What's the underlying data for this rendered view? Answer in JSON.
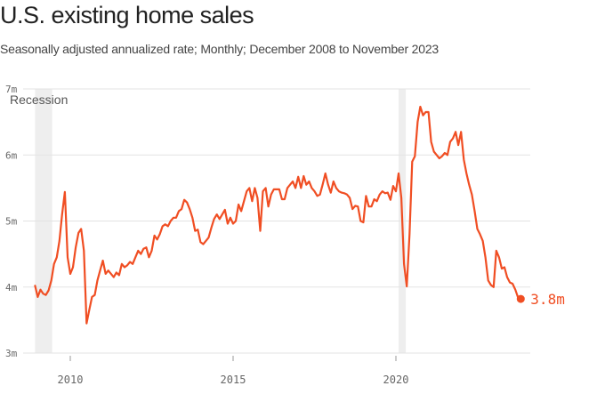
{
  "header": {
    "title": "U.S. existing home sales",
    "subtitle": "Seasonally adjusted annualized rate; Monthly; December 2008 to November 2023"
  },
  "colors": {
    "line": "#f04e23",
    "grid": "#e3e3e3",
    "recession": "#eeeeee"
  },
  "chart_data": {
    "type": "line",
    "title": "U.S. existing home sales",
    "subtitle": "Seasonally adjusted annualized rate; Monthly; December 2008 to November 2023",
    "ylim": [
      3,
      7
    ],
    "yticks": [
      3,
      4,
      5,
      6,
      7
    ],
    "ytick_labels": [
      "3m",
      "4m",
      "5m",
      "6m",
      "7m"
    ],
    "xticks": [
      2010,
      2015,
      2020
    ],
    "xtick_labels": [
      "2010",
      "2015",
      "2020"
    ],
    "recession_label": "Recession",
    "recessions": [
      {
        "start": "2008-12",
        "end": "2009-06"
      },
      {
        "start": "2020-02",
        "end": "2020-04"
      }
    ],
    "end_label": "3.8m",
    "series": [
      {
        "units": "millions",
        "points": [
          [
            "2008-12",
            4.02
          ],
          [
            "2009-01",
            3.85
          ],
          [
            "2009-02",
            3.96
          ],
          [
            "2009-03",
            3.9
          ],
          [
            "2009-04",
            3.88
          ],
          [
            "2009-05",
            3.95
          ],
          [
            "2009-06",
            4.1
          ],
          [
            "2009-07",
            4.35
          ],
          [
            "2009-08",
            4.45
          ],
          [
            "2009-09",
            4.7
          ],
          [
            "2009-10",
            5.1
          ],
          [
            "2009-11",
            5.44
          ],
          [
            "2009-12",
            4.45
          ],
          [
            "2010-01",
            4.2
          ],
          [
            "2010-02",
            4.3
          ],
          [
            "2010-03",
            4.6
          ],
          [
            "2010-04",
            4.82
          ],
          [
            "2010-05",
            4.88
          ],
          [
            "2010-06",
            4.55
          ],
          [
            "2010-07",
            3.45
          ],
          [
            "2010-08",
            3.65
          ],
          [
            "2010-09",
            3.85
          ],
          [
            "2010-10",
            3.88
          ],
          [
            "2010-11",
            4.1
          ],
          [
            "2010-12",
            4.25
          ],
          [
            "2011-01",
            4.4
          ],
          [
            "2011-02",
            4.2
          ],
          [
            "2011-03",
            4.25
          ],
          [
            "2011-04",
            4.2
          ],
          [
            "2011-05",
            4.15
          ],
          [
            "2011-06",
            4.22
          ],
          [
            "2011-07",
            4.18
          ],
          [
            "2011-08",
            4.35
          ],
          [
            "2011-09",
            4.3
          ],
          [
            "2011-10",
            4.33
          ],
          [
            "2011-11",
            4.38
          ],
          [
            "2011-12",
            4.35
          ],
          [
            "2012-01",
            4.45
          ],
          [
            "2012-02",
            4.55
          ],
          [
            "2012-03",
            4.5
          ],
          [
            "2012-04",
            4.58
          ],
          [
            "2012-05",
            4.6
          ],
          [
            "2012-06",
            4.45
          ],
          [
            "2012-07",
            4.55
          ],
          [
            "2012-08",
            4.78
          ],
          [
            "2012-09",
            4.72
          ],
          [
            "2012-10",
            4.8
          ],
          [
            "2012-11",
            4.92
          ],
          [
            "2012-12",
            4.95
          ],
          [
            "2013-01",
            4.92
          ],
          [
            "2013-02",
            5.0
          ],
          [
            "2013-03",
            5.05
          ],
          [
            "2013-04",
            5.05
          ],
          [
            "2013-05",
            5.15
          ],
          [
            "2013-06",
            5.18
          ],
          [
            "2013-07",
            5.32
          ],
          [
            "2013-08",
            5.28
          ],
          [
            "2013-09",
            5.18
          ],
          [
            "2013-10",
            5.05
          ],
          [
            "2013-11",
            4.85
          ],
          [
            "2013-12",
            4.87
          ],
          [
            "2014-01",
            4.68
          ],
          [
            "2014-02",
            4.65
          ],
          [
            "2014-03",
            4.7
          ],
          [
            "2014-04",
            4.75
          ],
          [
            "2014-05",
            4.9
          ],
          [
            "2014-06",
            5.03
          ],
          [
            "2014-07",
            5.1
          ],
          [
            "2014-08",
            5.03
          ],
          [
            "2014-09",
            5.1
          ],
          [
            "2014-10",
            5.17
          ],
          [
            "2014-11",
            4.96
          ],
          [
            "2014-12",
            5.05
          ],
          [
            "2015-01",
            4.96
          ],
          [
            "2015-02",
            5.0
          ],
          [
            "2015-03",
            5.25
          ],
          [
            "2015-04",
            5.15
          ],
          [
            "2015-05",
            5.3
          ],
          [
            "2015-06",
            5.45
          ],
          [
            "2015-07",
            5.5
          ],
          [
            "2015-08",
            5.3
          ],
          [
            "2015-09",
            5.5
          ],
          [
            "2015-10",
            5.35
          ],
          [
            "2015-11",
            4.85
          ],
          [
            "2015-12",
            5.45
          ],
          [
            "2016-01",
            5.5
          ],
          [
            "2016-02",
            5.22
          ],
          [
            "2016-03",
            5.4
          ],
          [
            "2016-04",
            5.48
          ],
          [
            "2016-05",
            5.48
          ],
          [
            "2016-06",
            5.48
          ],
          [
            "2016-07",
            5.33
          ],
          [
            "2016-08",
            5.33
          ],
          [
            "2016-09",
            5.5
          ],
          [
            "2016-10",
            5.55
          ],
          [
            "2016-11",
            5.6
          ],
          [
            "2016-12",
            5.5
          ],
          [
            "2017-01",
            5.67
          ],
          [
            "2017-02",
            5.5
          ],
          [
            "2017-03",
            5.68
          ],
          [
            "2017-04",
            5.55
          ],
          [
            "2017-05",
            5.6
          ],
          [
            "2017-06",
            5.5
          ],
          [
            "2017-07",
            5.45
          ],
          [
            "2017-08",
            5.38
          ],
          [
            "2017-09",
            5.4
          ],
          [
            "2017-10",
            5.55
          ],
          [
            "2017-11",
            5.72
          ],
          [
            "2017-12",
            5.55
          ],
          [
            "2018-01",
            5.43
          ],
          [
            "2018-02",
            5.6
          ],
          [
            "2018-03",
            5.5
          ],
          [
            "2018-04",
            5.45
          ],
          [
            "2018-05",
            5.43
          ],
          [
            "2018-06",
            5.42
          ],
          [
            "2018-07",
            5.4
          ],
          [
            "2018-08",
            5.35
          ],
          [
            "2018-09",
            5.18
          ],
          [
            "2018-10",
            5.23
          ],
          [
            "2018-11",
            5.22
          ],
          [
            "2018-12",
            5.0
          ],
          [
            "2019-01",
            4.98
          ],
          [
            "2019-02",
            5.38
          ],
          [
            "2019-03",
            5.22
          ],
          [
            "2019-04",
            5.22
          ],
          [
            "2019-05",
            5.33
          ],
          [
            "2019-06",
            5.3
          ],
          [
            "2019-07",
            5.4
          ],
          [
            "2019-08",
            5.45
          ],
          [
            "2019-09",
            5.42
          ],
          [
            "2019-10",
            5.43
          ],
          [
            "2019-11",
            5.32
          ],
          [
            "2019-12",
            5.53
          ],
          [
            "2020-01",
            5.45
          ],
          [
            "2020-02",
            5.72
          ],
          [
            "2020-03",
            5.35
          ],
          [
            "2020-04",
            4.35
          ],
          [
            "2020-05",
            4.01
          ],
          [
            "2020-06",
            4.8
          ],
          [
            "2020-07",
            5.9
          ],
          [
            "2020-08",
            5.98
          ],
          [
            "2020-09",
            6.5
          ],
          [
            "2020-10",
            6.73
          ],
          [
            "2020-11",
            6.6
          ],
          [
            "2020-12",
            6.65
          ],
          [
            "2021-01",
            6.65
          ],
          [
            "2021-02",
            6.2
          ],
          [
            "2021-03",
            6.05
          ],
          [
            "2021-04",
            6.0
          ],
          [
            "2021-05",
            5.95
          ],
          [
            "2021-06",
            5.98
          ],
          [
            "2021-07",
            6.03
          ],
          [
            "2021-08",
            6.0
          ],
          [
            "2021-09",
            6.2
          ],
          [
            "2021-10",
            6.25
          ],
          [
            "2021-11",
            6.35
          ],
          [
            "2021-12",
            6.15
          ],
          [
            "2022-01",
            6.35
          ],
          [
            "2022-02",
            5.93
          ],
          [
            "2022-03",
            5.72
          ],
          [
            "2022-04",
            5.55
          ],
          [
            "2022-05",
            5.4
          ],
          [
            "2022-06",
            5.15
          ],
          [
            "2022-07",
            4.88
          ],
          [
            "2022-08",
            4.8
          ],
          [
            "2022-09",
            4.7
          ],
          [
            "2022-10",
            4.45
          ],
          [
            "2022-11",
            4.1
          ],
          [
            "2022-12",
            4.03
          ],
          [
            "2023-01",
            4.0
          ],
          [
            "2023-02",
            4.55
          ],
          [
            "2023-03",
            4.45
          ],
          [
            "2023-04",
            4.28
          ],
          [
            "2023-05",
            4.3
          ],
          [
            "2023-06",
            4.15
          ],
          [
            "2023-07",
            4.07
          ],
          [
            "2023-08",
            4.05
          ],
          [
            "2023-09",
            3.96
          ],
          [
            "2023-10",
            3.84
          ],
          [
            "2023-11",
            3.82
          ]
        ]
      }
    ]
  }
}
